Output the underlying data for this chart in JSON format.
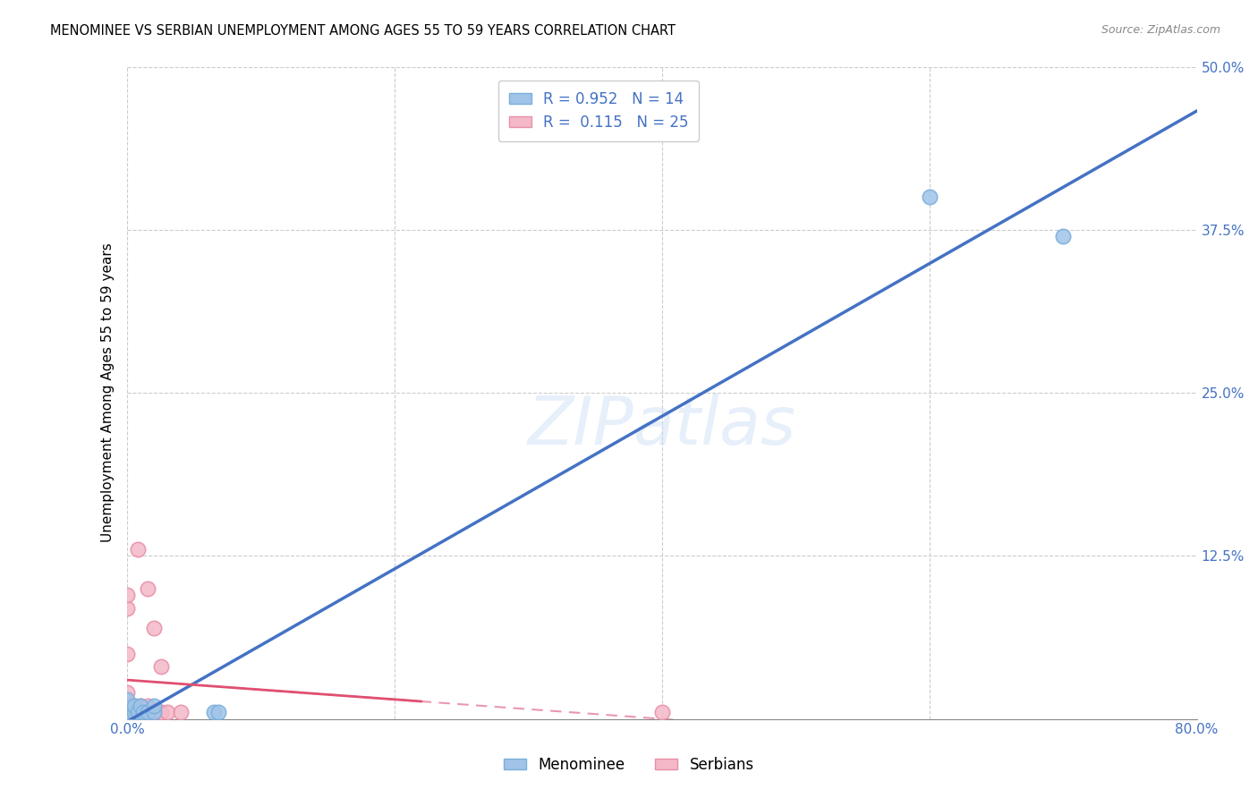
{
  "title": "MENOMINEE VS SERBIAN UNEMPLOYMENT AMONG AGES 55 TO 59 YEARS CORRELATION CHART",
  "source": "Source: ZipAtlas.com",
  "ylabel": "Unemployment Among Ages 55 to 59 years",
  "xlim": [
    0.0,
    0.8
  ],
  "ylim": [
    0.0,
    0.5
  ],
  "xticks": [
    0.0,
    0.2,
    0.4,
    0.6,
    0.8
  ],
  "yticks": [
    0.0,
    0.125,
    0.25,
    0.375,
    0.5
  ],
  "menominee_color": "#a0c4e8",
  "menominee_edge_color": "#7aafdb",
  "serbian_color": "#f4b8c8",
  "serbian_edge_color": "#e890a8",
  "menominee_line_color": "#4472c4",
  "serbian_line_solid_color": "#e05070",
  "serbian_line_dash_color": "#e898b0",
  "watermark": "ZIPatlas",
  "menominee_points_x": [
    0.0,
    0.0,
    0.0,
    0.005,
    0.005,
    0.008,
    0.01,
    0.012,
    0.015,
    0.02,
    0.02,
    0.065,
    0.068,
    0.6,
    0.7
  ],
  "menominee_points_y": [
    0.005,
    0.01,
    0.015,
    0.005,
    0.01,
    0.005,
    0.01,
    0.005,
    0.005,
    0.005,
    0.01,
    0.005,
    0.005,
    0.4,
    0.37
  ],
  "serbian_points_x": [
    0.0,
    0.0,
    0.0,
    0.0,
    0.0,
    0.0,
    0.005,
    0.005,
    0.007,
    0.008,
    0.008,
    0.01,
    0.01,
    0.012,
    0.015,
    0.015,
    0.015,
    0.02,
    0.02,
    0.02,
    0.025,
    0.025,
    0.03,
    0.04,
    0.4
  ],
  "serbian_points_y": [
    0.005,
    0.01,
    0.02,
    0.05,
    0.085,
    0.095,
    0.005,
    0.01,
    0.005,
    0.005,
    0.13,
    0.005,
    0.01,
    0.005,
    0.005,
    0.01,
    0.1,
    0.005,
    0.005,
    0.07,
    0.005,
    0.04,
    0.005,
    0.005,
    0.005
  ],
  "grid_color": "#cccccc"
}
